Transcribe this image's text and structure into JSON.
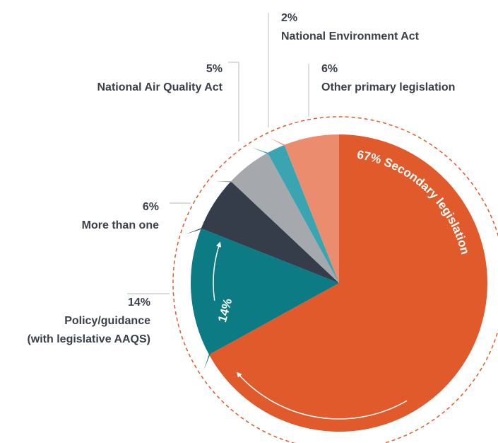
{
  "chart_data": {
    "type": "pie",
    "categories": [
      "Secondary legislation",
      "Policy/guidance\n(with legislative AAQS)",
      "More than one",
      "National Air Quality Act",
      "National Environment Act",
      "Other primary legislation"
    ],
    "values": [
      67,
      14,
      6,
      5,
      2,
      6
    ],
    "value_labels": [
      "67%",
      "14%",
      "6%",
      "5%",
      "2%",
      "6%"
    ],
    "colors": [
      "#e05a2b",
      "#0c7b84",
      "#353d4a",
      "#a5a8ad",
      "#3aa5b0",
      "#ec8c6f"
    ]
  }
}
